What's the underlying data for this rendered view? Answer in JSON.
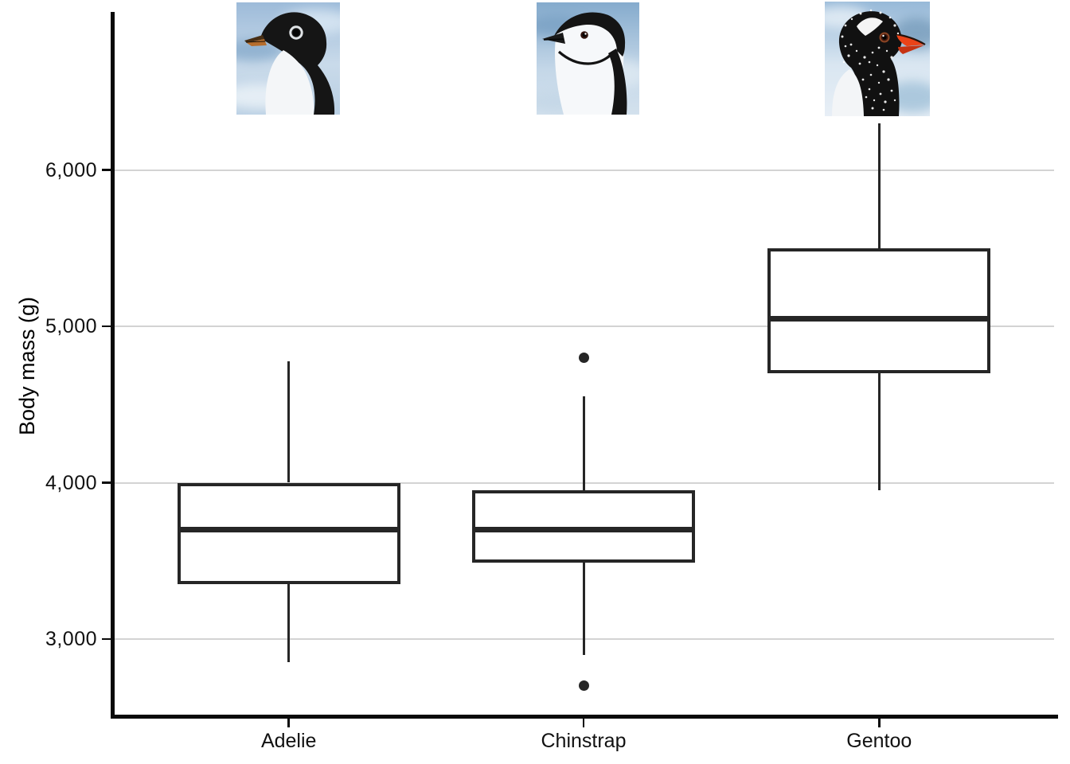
{
  "figure_title": "Penguin body mass boxplot",
  "chart_data": {
    "type": "boxplot",
    "title": "",
    "xlabel": "",
    "ylabel": "Body mass (g)",
    "categories": [
      "Adelie",
      "Chinstrap",
      "Gentoo"
    ],
    "y_ticks": [
      3000,
      4000,
      5000,
      6000
    ],
    "y_tick_labels": [
      "3,000",
      "4,000",
      "5,000",
      "6,000"
    ],
    "ylim": [
      2500,
      7050
    ],
    "grid": "horizontal-gridlines-only",
    "legend": "none",
    "series": [
      {
        "name": "Adelie",
        "whisker_low": 2850,
        "q1": 3350,
        "median": 3700,
        "q3": 4000,
        "whisker_high": 4775,
        "outliers": []
      },
      {
        "name": "Chinstrap",
        "whisker_low": 2900,
        "q1": 3487.5,
        "median": 3700,
        "q3": 3950,
        "whisker_high": 4550,
        "outliers": [
          2700,
          4800
        ]
      },
      {
        "name": "Gentoo",
        "whisker_low": 3950,
        "q1": 4700,
        "median": 5050,
        "q3": 5500,
        "whisker_high": 6300,
        "outliers": []
      }
    ],
    "annotations": [
      {
        "type": "image",
        "category": "Adelie",
        "label": "Adelie penguin head photo, facing left, white eye-ring, orange-brown beak"
      },
      {
        "type": "image",
        "category": "Chinstrap",
        "label": "Chinstrap penguin head photo, facing left, black cap and thin chin strap"
      },
      {
        "type": "image",
        "category": "Gentoo",
        "label": "Gentoo penguin head photo, facing right, white eye patch, red-orange beak"
      }
    ]
  },
  "colors": {
    "box_stroke": "#262626",
    "box_fill": "#ffffff",
    "gridline": "#d3d3d3",
    "axis_line": "#0a0a0a",
    "text": "#111111",
    "background": "#ffffff"
  }
}
